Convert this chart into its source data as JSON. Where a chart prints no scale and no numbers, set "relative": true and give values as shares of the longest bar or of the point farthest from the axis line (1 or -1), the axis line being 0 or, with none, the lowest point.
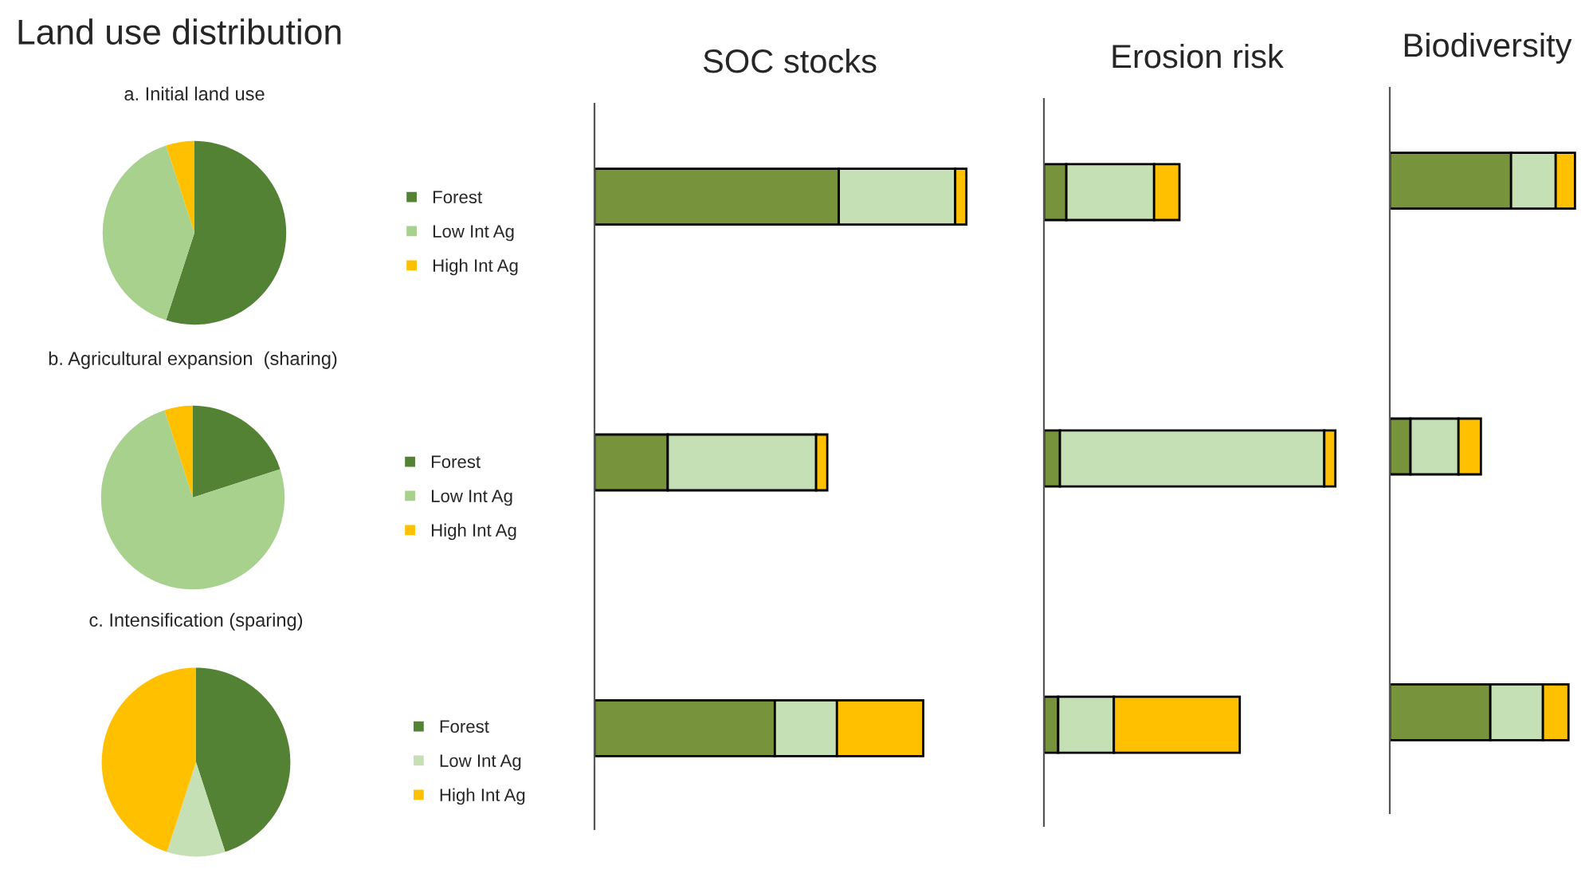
{
  "chart_data": [
    {
      "type": "pie",
      "title": "a. Initial land use",
      "annotations": [
        "Land use distribution"
      ],
      "categories": [
        "Forest",
        "Low Int Ag",
        "High Int Ag"
      ],
      "values": [
        55,
        40,
        5
      ],
      "colors": [
        "#548235",
        "#a9d18e",
        "#ffc000"
      ],
      "legend": "right"
    },
    {
      "type": "pie",
      "title": "b. Agricultural expansion  (sharing)",
      "categories": [
        "Forest",
        "Low Int Ag",
        "High Int Ag"
      ],
      "values": [
        20,
        75,
        5
      ],
      "colors": [
        "#548235",
        "#a9d18e",
        "#ffc000"
      ],
      "legend": "right"
    },
    {
      "type": "pie",
      "title": "c. Intensification (sparing)",
      "categories": [
        "Forest",
        "Low Int Ag",
        "High Int Ag"
      ],
      "values": [
        45,
        10,
        45
      ],
      "colors": [
        "#548235",
        "#c5e0b4",
        "#ffc000"
      ],
      "legend": "right"
    },
    {
      "type": "bar",
      "title": "SOC stocks",
      "orientation": "horizontal",
      "stacked": true,
      "relative": true,
      "categories": [
        null,
        null,
        null
      ],
      "series": [
        {
          "color": "#77933c",
          "values": [
            0.657,
            0.197,
            0.485
          ]
        },
        {
          "color": "#c5e0b4",
          "values": [
            0.313,
            0.399,
            0.167
          ]
        },
        {
          "color": "#ffc000",
          "values": [
            0.03,
            0.03,
            0.232
          ]
        }
      ]
    },
    {
      "type": "bar",
      "title": "Erosion risk",
      "orientation": "horizontal",
      "stacked": true,
      "relative": true,
      "categories": [
        null,
        null,
        null
      ],
      "series": [
        {
          "color": "#77933c",
          "values": [
            0.077,
            0.055,
            0.049
          ]
        },
        {
          "color": "#c5e0b4",
          "values": [
            0.301,
            0.907,
            0.191
          ]
        },
        {
          "color": "#ffc000",
          "values": [
            0.087,
            0.038,
            0.432
          ]
        }
      ]
    },
    {
      "type": "bar",
      "title": "Biodiversity",
      "orientation": "horizontal",
      "stacked": true,
      "relative": true,
      "categories": [
        null,
        null,
        null
      ],
      "series": [
        {
          "color": "#77933c",
          "values": [
            0.655,
            0.112,
            0.543
          ]
        },
        {
          "color": "#c5e0b4",
          "values": [
            0.241,
            0.259,
            0.284
          ]
        },
        {
          "color": "#ffc000",
          "values": [
            0.104,
            0.121,
            0.138
          ]
        }
      ]
    }
  ]
}
